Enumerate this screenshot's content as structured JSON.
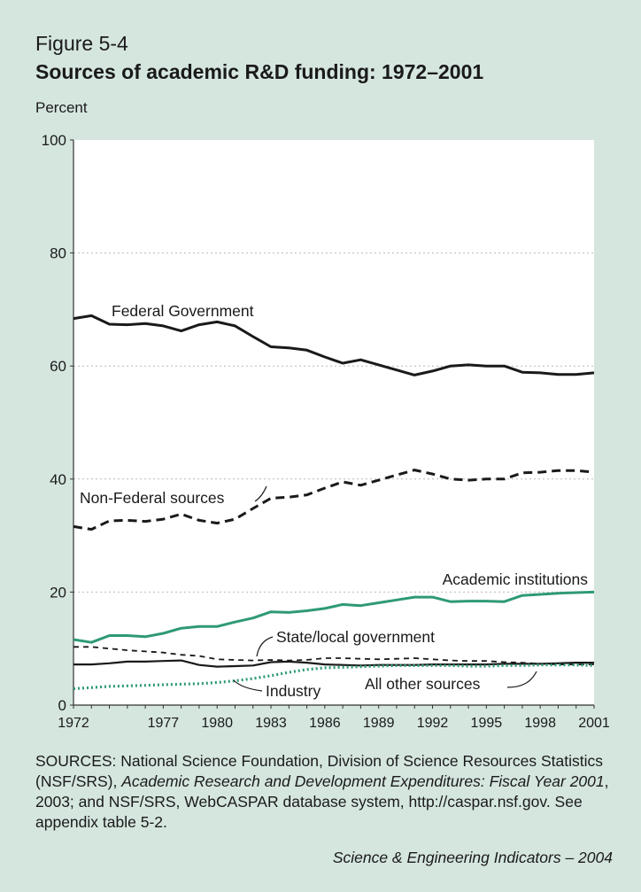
{
  "figure": {
    "number": "Figure 5-4",
    "title": "Sources of academic R&D funding: 1972–2001"
  },
  "chart_data": {
    "type": "line",
    "title": "Sources of academic R&D funding: 1972–2001",
    "ylabel": "Percent",
    "xlabel": "",
    "xlim": [
      1972,
      2001
    ],
    "ylim": [
      0,
      100
    ],
    "x_ticks": [
      "1972",
      "1977",
      "1980",
      "1983",
      "1986",
      "1989",
      "1992",
      "1995",
      "1998",
      "2001"
    ],
    "y_ticks": [
      "0",
      "20",
      "40",
      "60",
      "80",
      "100"
    ],
    "grid": "horizontal dotted",
    "x": [
      1972,
      1973,
      1974,
      1975,
      1976,
      1977,
      1978,
      1979,
      1980,
      1981,
      1982,
      1983,
      1984,
      1985,
      1986,
      1987,
      1988,
      1989,
      1990,
      1991,
      1992,
      1993,
      1994,
      1995,
      1996,
      1997,
      1998,
      1999,
      2000,
      2001
    ],
    "series": [
      {
        "name": "Federal Government",
        "color": "#1a1a1a",
        "style": "solid",
        "values": [
          68.4,
          68.9,
          67.4,
          67.3,
          67.5,
          67.1,
          66.2,
          67.3,
          67.8,
          67.1,
          65.2,
          63.4,
          63.2,
          62.8,
          61.6,
          60.5,
          61.1,
          60.2,
          59.3,
          58.4,
          59.1,
          60.0,
          60.2,
          60.0,
          60.0,
          58.9,
          58.8,
          58.5,
          58.5,
          58.8
        ]
      },
      {
        "name": "Non-Federal sources",
        "color": "#1a1a1a",
        "style": "dashed",
        "values": [
          31.6,
          31.1,
          32.6,
          32.7,
          32.5,
          32.9,
          33.8,
          32.7,
          32.2,
          32.9,
          34.8,
          36.6,
          36.8,
          37.2,
          38.4,
          39.5,
          38.9,
          39.8,
          40.7,
          41.6,
          40.9,
          40.0,
          39.8,
          40.0,
          40.0,
          41.1,
          41.2,
          41.5,
          41.5,
          41.2
        ]
      },
      {
        "name": "Academic institutions",
        "color": "#2e9a73",
        "style": "solid",
        "values": [
          11.6,
          11.1,
          12.3,
          12.3,
          12.1,
          12.7,
          13.6,
          13.9,
          13.9,
          14.7,
          15.4,
          16.5,
          16.4,
          16.7,
          17.1,
          17.8,
          17.6,
          18.1,
          18.6,
          19.1,
          19.1,
          18.3,
          18.4,
          18.4,
          18.3,
          19.4,
          19.6,
          19.8,
          19.9,
          20.0
        ]
      },
      {
        "name": "State/local government",
        "color": "#1a1a1a",
        "style": "short-dash",
        "values": [
          10.3,
          10.3,
          10.0,
          9.7,
          9.5,
          9.3,
          8.9,
          8.7,
          8.1,
          8.0,
          7.9,
          8.0,
          7.9,
          8.0,
          8.3,
          8.3,
          8.2,
          8.1,
          8.2,
          8.3,
          8.1,
          7.9,
          7.8,
          7.8,
          7.6,
          7.5,
          7.3,
          7.2,
          7.2,
          7.2
        ]
      },
      {
        "name": "All other sources",
        "color": "#1a1a1a",
        "style": "solid",
        "values": [
          7.2,
          7.2,
          7.4,
          7.7,
          7.7,
          7.8,
          7.9,
          7.1,
          6.8,
          6.9,
          7.0,
          7.6,
          7.7,
          7.5,
          7.2,
          7.1,
          7.0,
          7.1,
          7.1,
          7.1,
          7.2,
          7.2,
          7.2,
          7.2,
          7.3,
          7.3,
          7.3,
          7.4,
          7.5,
          7.5
        ]
      },
      {
        "name": "Industry",
        "color": "#2e9a73",
        "style": "dotted",
        "values": [
          2.9,
          3.1,
          3.3,
          3.4,
          3.5,
          3.6,
          3.7,
          3.8,
          4.0,
          4.3,
          4.7,
          5.2,
          5.8,
          6.3,
          6.6,
          6.7,
          6.8,
          6.9,
          7.0,
          7.0,
          7.0,
          7.0,
          6.9,
          6.9,
          7.0,
          7.0,
          7.1,
          7.1,
          7.1,
          7.0
        ]
      }
    ],
    "annotations": [
      "Federal Government",
      "Non-Federal sources",
      "Academic institutions",
      "State/local government",
      "All other sources",
      "Industry"
    ]
  },
  "footer": {
    "sources_prefix": "SOURCES: National Science Foundation, Division of Science Resources Statistics (NSF/SRS), ",
    "sources_title": "Academic Research and Development Expenditures: Fiscal Year 2001",
    "sources_suffix": ", 2003; and NSF/SRS, WebCASPAR database system, http://caspar.nsf.gov. See appendix table 5-2.",
    "credit": "Science & Engineering Indicators – 2004"
  }
}
